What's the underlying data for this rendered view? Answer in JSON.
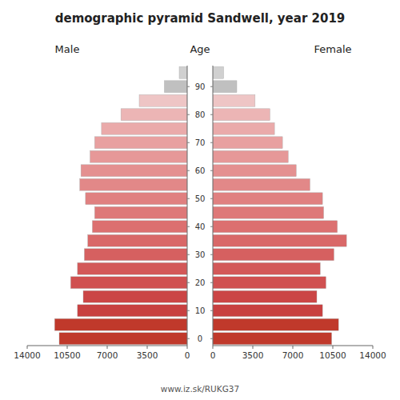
{
  "chart_data": {
    "type": "pyramid",
    "orientation": "horizontal",
    "title": "demographic pyramid Sandwell, year 2019",
    "ylabel": "Age",
    "annotations": [
      "www.iz.sk/RUKG37"
    ],
    "categories": [
      "0",
      null,
      "10",
      null,
      "20",
      null,
      "30",
      null,
      "40",
      null,
      "50",
      null,
      "60",
      null,
      "70",
      null,
      "80",
      null,
      "90",
      null
    ],
    "series": [
      {
        "name": "Male",
        "values": [
          11200,
          11600,
          9600,
          9100,
          10200,
          9600,
          9000,
          8700,
          8300,
          8100,
          8900,
          9400,
          9300,
          8500,
          8100,
          7500,
          5800,
          4200,
          2000,
          700
        ]
      },
      {
        "name": "Female",
        "values": [
          10400,
          11000,
          9600,
          9100,
          9900,
          9400,
          10600,
          11700,
          10900,
          9700,
          9600,
          8500,
          7300,
          6600,
          6100,
          5400,
          5000,
          3700,
          2100,
          950
        ]
      }
    ],
    "colors": [
      "#c0392b",
      "#c0392b",
      "#c84040",
      "#cb4545",
      "#d05050",
      "#d35858",
      "#d66060",
      "#d96868",
      "#dc7070",
      "#de7878",
      "#e08080",
      "#e28888",
      "#e49090",
      "#e69898",
      "#e8a0a0",
      "#eaaaaa",
      "#ecb5b5",
      "#eec5c5",
      "#c0c0c0",
      "#d0d0d0"
    ],
    "xlim": [
      0,
      14000
    ],
    "xticks": [
      0,
      3500,
      7000,
      10500,
      14000
    ],
    "grid": false
  }
}
